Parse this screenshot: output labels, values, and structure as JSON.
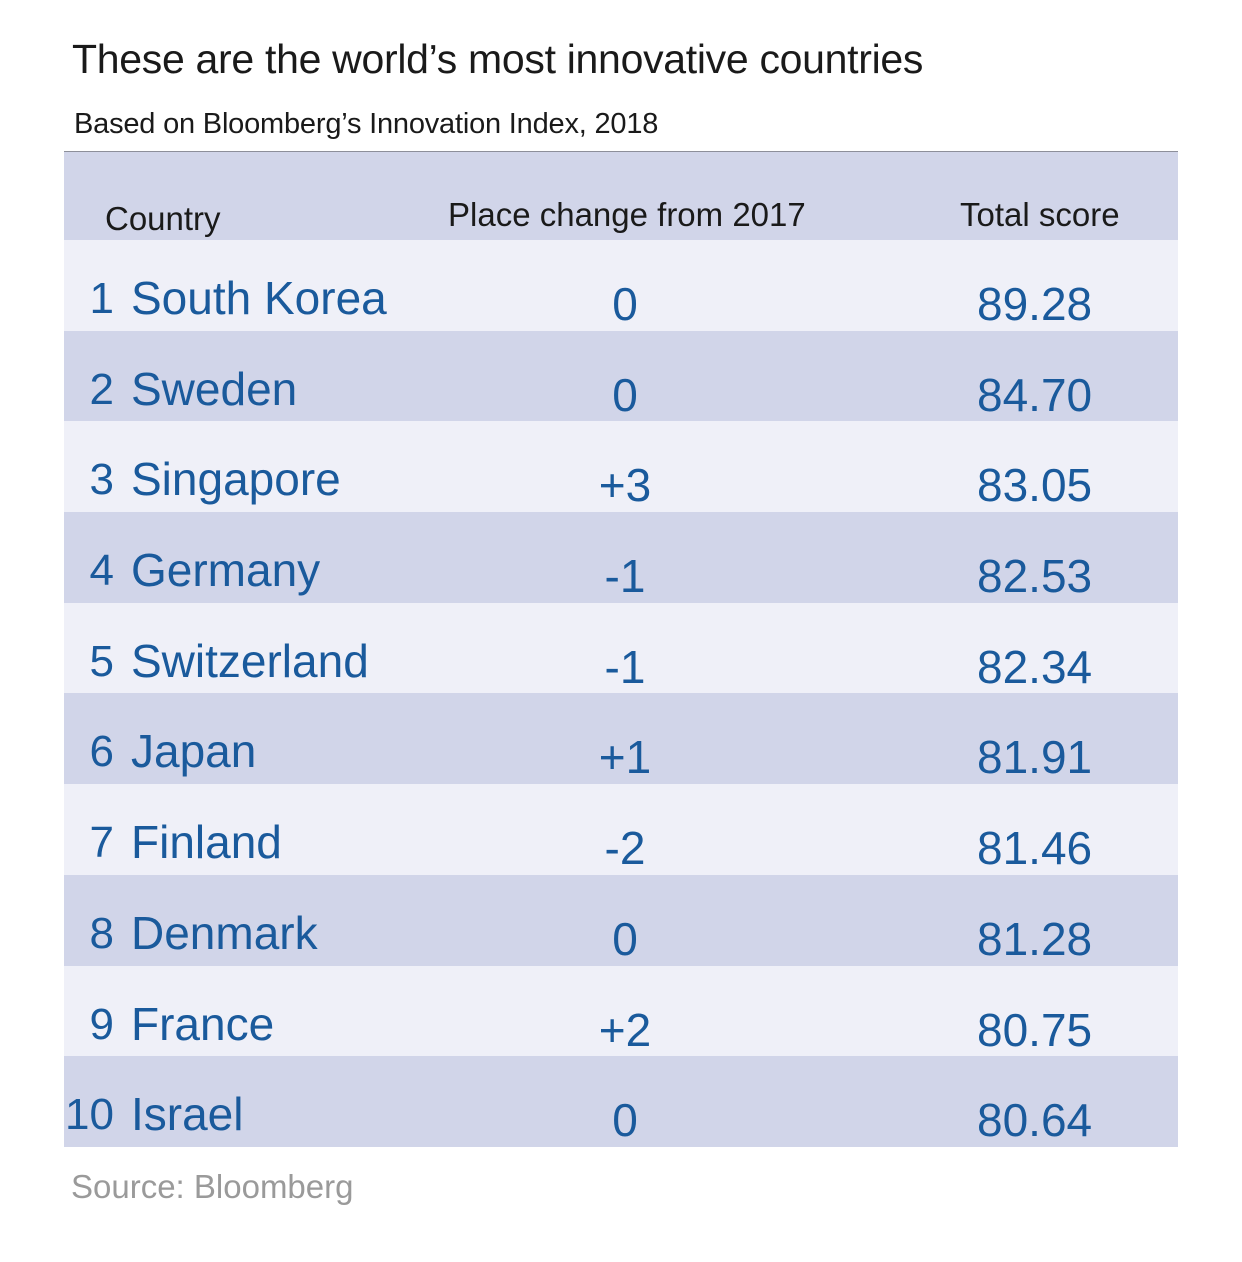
{
  "title": "These are the world’s most innovative countries",
  "subtitle": "Based on Bloomberg’s Innovation Index, 2018",
  "source": "Source: Bloomberg",
  "colors": {
    "header_bg": "#d1d5e9",
    "row_light": "#eff0f8",
    "row_dark": "#d1d5e9",
    "data_text": "#1a5a9c"
  },
  "chart_data": {
    "type": "table",
    "columns": [
      "Country",
      "Place change from 2017",
      "Total score"
    ],
    "rows": [
      {
        "rank": "1",
        "country": "South Korea",
        "change": "0",
        "score": "89.28"
      },
      {
        "rank": "2",
        "country": "Sweden",
        "change": "0",
        "score": "84.70"
      },
      {
        "rank": "3",
        "country": "Singapore",
        "change": "+3",
        "score": "83.05"
      },
      {
        "rank": "4",
        "country": "Germany",
        "change": "-1",
        "score": "82.53"
      },
      {
        "rank": "5",
        "country": "Switzerland",
        "change": "-1",
        "score": "82.34"
      },
      {
        "rank": "6",
        "country": "Japan",
        "change": "+1",
        "score": "81.91"
      },
      {
        "rank": "7",
        "country": "Finland",
        "change": "-2",
        "score": "81.46"
      },
      {
        "rank": "8",
        "country": "Denmark",
        "change": "0",
        "score": "81.28"
      },
      {
        "rank": "9",
        "country": "France",
        "change": "+2",
        "score": "80.75"
      },
      {
        "rank": "10",
        "country": "Israel",
        "change": "0",
        "score": "80.64"
      }
    ]
  }
}
